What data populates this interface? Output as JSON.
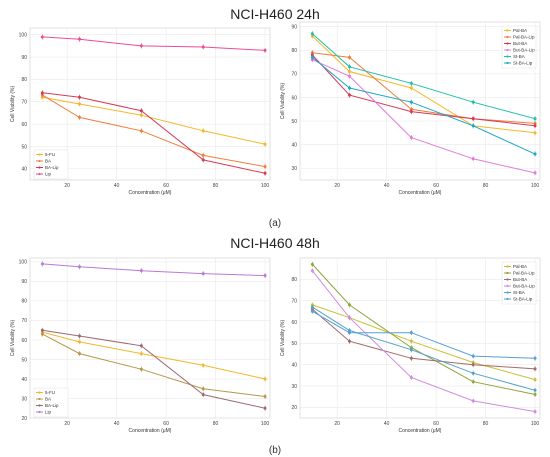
{
  "titles": {
    "top": "NCI-H460 24h",
    "bottom": "NCI-H460 48h"
  },
  "panel_labels": {
    "a": "(a)",
    "b": "(b)"
  },
  "chart_data": [
    {
      "id": "c24a",
      "type": "line",
      "xlabel": "Concentration (μM)",
      "ylabel": "Cell Viability (%)",
      "xlim": [
        5,
        102
      ],
      "ylim": [
        35,
        103
      ],
      "xticks": [
        20,
        40,
        60,
        80,
        100
      ],
      "yticks": [
        40,
        50,
        60,
        70,
        80,
        90,
        100
      ],
      "grid": true,
      "legend": "bottom-left",
      "x": [
        10,
        25,
        50,
        75,
        100
      ],
      "series": [
        {
          "name": "5-FU",
          "color": "#f5b729",
          "values": [
            72,
            69,
            64,
            57,
            51
          ]
        },
        {
          "name": "BA",
          "color": "#ef7e3e",
          "values": [
            73,
            63,
            57,
            46,
            41
          ]
        },
        {
          "name": "BA-Lip",
          "color": "#d33b55",
          "values": [
            74,
            72,
            66,
            44,
            38
          ]
        },
        {
          "name": "Lip",
          "color": "#ea4d93",
          "values": [
            99,
            98,
            95,
            94.5,
            93
          ]
        }
      ]
    },
    {
      "id": "c24b",
      "type": "line",
      "xlabel": "Concentration (μM)",
      "ylabel": "Cell Viability (%)",
      "xlim": [
        5,
        102
      ],
      "ylim": [
        25,
        92
      ],
      "xticks": [
        20,
        40,
        60,
        80,
        100
      ],
      "yticks": [
        30,
        40,
        50,
        60,
        70,
        80,
        90
      ],
      "grid": true,
      "legend": "top-right",
      "x": [
        10,
        25,
        50,
        75,
        100
      ],
      "series": [
        {
          "name": "Pal-BA",
          "color": "#f5b729",
          "values": [
            86,
            71,
            64,
            48,
            45
          ]
        },
        {
          "name": "Pal-BA-Lip",
          "color": "#ef7e3e",
          "values": [
            79,
            77,
            55,
            51,
            49
          ]
        },
        {
          "name": "But-BA",
          "color": "#d33b55",
          "values": [
            78,
            61,
            54,
            51,
            48
          ]
        },
        {
          "name": "But-BA-Lip",
          "color": "#e47ad8",
          "values": [
            76,
            69,
            43,
            34,
            28
          ]
        },
        {
          "name": "St-BA",
          "color": "#1fbfa8",
          "values": [
            87,
            73,
            66,
            58,
            51
          ]
        },
        {
          "name": "St-BA-Lip",
          "color": "#1ba7c7",
          "values": [
            77,
            64,
            58,
            48,
            36
          ]
        }
      ]
    },
    {
      "id": "c48a",
      "type": "line",
      "xlabel": "Concentration (μM)",
      "ylabel": "Cell Viability (%)",
      "xlim": [
        5,
        102
      ],
      "ylim": [
        20,
        102
      ],
      "xticks": [
        20,
        40,
        60,
        80,
        100
      ],
      "yticks": [
        20,
        30,
        40,
        50,
        60,
        70,
        80,
        90,
        100
      ],
      "grid": true,
      "legend": "bottom-left",
      "x": [
        10,
        25,
        50,
        75,
        100
      ],
      "series": [
        {
          "name": "5-FU",
          "color": "#f5b729",
          "values": [
            64,
            59,
            53,
            47,
            40
          ]
        },
        {
          "name": "BA",
          "color": "#b8974a",
          "values": [
            63,
            53,
            45,
            35,
            31
          ]
        },
        {
          "name": "BA-Lip",
          "color": "#9a6a72",
          "values": [
            65,
            62,
            57,
            32,
            25
          ]
        },
        {
          "name": "Lip",
          "color": "#b77ad8",
          "values": [
            99,
            97.5,
            95.5,
            94,
            93
          ]
        }
      ]
    },
    {
      "id": "c48b",
      "type": "line",
      "xlabel": "Concentration (μM)",
      "ylabel": "Cell Viability (%)",
      "xlim": [
        5,
        102
      ],
      "ylim": [
        15,
        90
      ],
      "xticks": [
        20,
        40,
        60,
        80,
        100
      ],
      "yticks": [
        20,
        30,
        40,
        50,
        60,
        70,
        80
      ],
      "grid": true,
      "legend": "top-right",
      "x": [
        10,
        25,
        50,
        75,
        100
      ],
      "series": [
        {
          "name": "Pal-BA",
          "color": "#c9c034",
          "values": [
            68,
            62,
            51,
            41,
            33
          ]
        },
        {
          "name": "Pal-BA-Lip",
          "color": "#8fa63a",
          "values": [
            87,
            68,
            48,
            32,
            26
          ]
        },
        {
          "name": "But-BA",
          "color": "#a36a6a",
          "values": [
            66,
            51,
            43,
            40,
            38
          ]
        },
        {
          "name": "But-BA-Lip",
          "color": "#d08be0",
          "values": [
            84,
            62,
            34,
            23,
            18
          ]
        },
        {
          "name": "St-BA",
          "color": "#5a9ed6",
          "values": [
            65,
            55,
            55,
            44,
            43
          ]
        },
        {
          "name": "St-BA-Lip",
          "color": "#4fa3c8",
          "values": [
            67,
            56,
            47,
            36,
            28
          ]
        }
      ]
    }
  ]
}
